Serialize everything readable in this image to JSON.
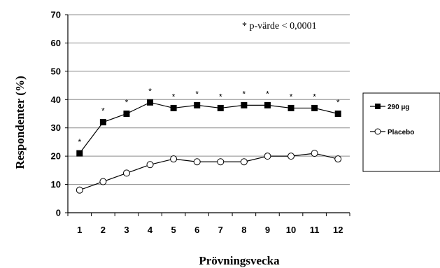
{
  "chart_data": {
    "type": "line",
    "title": "",
    "xlabel": "Prövningsvecka",
    "ylabel": "Respondenter (%)",
    "x": [
      1,
      2,
      3,
      4,
      5,
      6,
      7,
      8,
      9,
      10,
      11,
      12
    ],
    "x_tick_labels": [
      "1",
      "2",
      "3",
      "4",
      "5",
      "6",
      "7",
      "8",
      "9",
      "10",
      "11",
      "12"
    ],
    "y_ticks": [
      0,
      10,
      20,
      30,
      40,
      50,
      60,
      70
    ],
    "y_tick_labels": [
      "0",
      "10",
      "20",
      "30",
      "40",
      "50",
      "60",
      "70"
    ],
    "ylim": [
      0,
      70
    ],
    "grid": "horizontal",
    "legend_position": "right",
    "annotation": "* p-värde < 0,0001",
    "significance_marker": "*",
    "series": [
      {
        "name": "290 µg",
        "marker": "filled-square",
        "color": "#000000",
        "values": [
          21,
          32,
          35,
          39,
          37,
          38,
          37,
          38,
          38,
          37,
          37,
          35
        ],
        "significant": [
          true,
          true,
          true,
          true,
          true,
          true,
          true,
          true,
          true,
          true,
          true,
          true
        ]
      },
      {
        "name": "Placebo",
        "marker": "open-circle",
        "color": "#000000",
        "values": [
          8,
          11,
          14,
          17,
          19,
          18,
          18,
          18,
          20,
          20,
          21,
          19
        ]
      }
    ]
  }
}
